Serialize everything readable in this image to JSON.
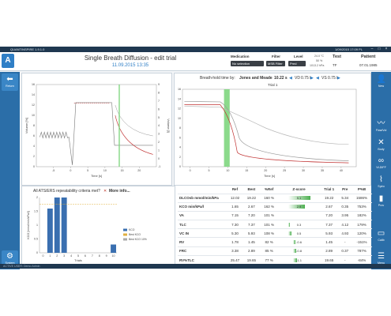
{
  "titlebar": {
    "app_title": "QUANTINSPIRE 1.9.1.0",
    "clock": "1/09/2015 17:09 PL"
  },
  "header": {
    "title": "Single Breath Diffusion - edit trial",
    "date": "11.09.2015 13:35",
    "medication_label": "Medication",
    "medication_value": "No selection",
    "filter_label": "Filter",
    "filter_value": "MSB Filter",
    "level_label": "Level",
    "level_value": "Pred",
    "env_temp": "24.0 °C",
    "env_humidity": "50 %",
    "env_pressure": "1013.2 hPa",
    "test_label": "Test",
    "test_value": "TF",
    "patient_label": "Patient",
    "patient_value": "07.01.1985"
  },
  "left_nav": {
    "return_label": "Return",
    "system_label": "System"
  },
  "right_nav": [
    {
      "label": "New",
      "icon": "person-icon"
    },
    {
      "label": "Flow/Vol",
      "icon": "flow-volume-icon"
    },
    {
      "label": "Body",
      "icon": "body-box-icon"
    },
    {
      "label": "Vt-DIFF",
      "icon": "diffusion-icon"
    },
    {
      "label": "Spiro",
      "icon": "spiro-icon"
    },
    {
      "label": "Prov",
      "icon": "provocation-icon"
    },
    {
      "label": "Calib",
      "icon": "calibration-icon"
    },
    {
      "label": "Menu",
      "icon": "menu-icon"
    }
  ],
  "breath_panel": {
    "label": "Breath-hold time by:",
    "method": "Jones and Meade",
    "time": "10.22 s",
    "vd_label": "VD",
    "vd_value": "0.75 l",
    "vs_label": "VS",
    "vs_value": "0.75 l",
    "trial_label": "Trial 1"
  },
  "repeatability": {
    "text": "All ATS/ERS repeatability criteria met?",
    "more_info": "More info..."
  },
  "chart_data": [
    {
      "type": "line",
      "name": "trial overview",
      "xlabel": "Time [s]",
      "ylabel_left": "Volume [%]",
      "ylabel_right": "Volume [l]",
      "xlim": [
        -10,
        25
      ],
      "ylim_left": [
        0,
        16
      ],
      "ylim_right": [
        -1,
        9
      ],
      "x_ticks": [
        -5,
        0,
        5,
        10,
        15,
        20
      ],
      "y_ticks_left": [
        0,
        2,
        4,
        6,
        8,
        10,
        12,
        14,
        16
      ],
      "y_ticks_right": [
        -1,
        0,
        1,
        2,
        3,
        4,
        5,
        6,
        7,
        8,
        9
      ]
    },
    {
      "type": "line",
      "name": "gas concentrations",
      "xlabel": "Time [s]",
      "xlim": [
        -2,
        44
      ],
      "ylim_left": [
        0,
        16
      ],
      "x_ticks": [
        0,
        5,
        10,
        15,
        20,
        25,
        30,
        35,
        40
      ],
      "y_ticks_left": [
        0,
        2,
        4,
        6,
        8,
        10,
        12,
        14,
        16
      ]
    },
    {
      "type": "bar",
      "name": "KCO",
      "xlabel": "Trials",
      "ylabel": "KCO [mmol/min/kPa/l]",
      "categories": [
        "0",
        "1",
        "2",
        "3",
        "4",
        "5",
        "6",
        "7",
        "8",
        "9",
        "10"
      ],
      "values": [
        0,
        1.6,
        2.0,
        2.0,
        0,
        0,
        0,
        0,
        0,
        0,
        0.3
      ],
      "ylim": [
        0,
        2
      ],
      "legend": [
        "KCO",
        "Best KCO",
        "Best KCO 10%"
      ],
      "reference_line": 1.75
    }
  ],
  "results": {
    "columns": [
      "",
      "Ref",
      "Best",
      "%Ref",
      "Z-score",
      "Trial 1",
      "Pre",
      "P%B"
    ],
    "rows": [
      {
        "param": "DLCOsb  mmol/min/kPa",
        "ref": "12.02",
        "best": "19.22",
        "pref": "160 %",
        "z": "5.1",
        "z_frac": 1.0,
        "trial": "19.22",
        "pre": "5.34",
        "pb": "1586%"
      },
      {
        "param": "KCO    min/kPa/l",
        "ref": "1.65",
        "best": "2.67",
        "pref": "162 %",
        "z": "2.9",
        "z_frac": 0.75,
        "trial": "2.67",
        "pre": "0.35",
        "pb": "753%"
      },
      {
        "param": "VA",
        "ref": "7.15",
        "best": "7.20",
        "pref": "101 %",
        "z": "",
        "z_frac": 0,
        "trial": "7.20",
        "pre": "3.95",
        "pb": "182%"
      },
      {
        "param": "TLC",
        "ref": "7.30",
        "best": "7.37",
        "pref": "101 %",
        "z": "0.3",
        "z_frac": 0.1,
        "trial": "7.37",
        "pre": "4.12",
        "pb": "179%"
      },
      {
        "param": "VC IN",
        "ref": "5.30",
        "best": "5.93",
        "pref": "108 %",
        "z": "0.5",
        "z_frac": 0.15,
        "trial": "5.93",
        "pre": "4.93",
        "pb": "120%"
      },
      {
        "param": "RV",
        "ref": "1.78",
        "best": "1.45",
        "pref": "82 %",
        "z": "-0.6",
        "z_frac": 0.12,
        "trial": "1.45",
        "pre": "-",
        "pb": "-151%"
      },
      {
        "param": "FRC",
        "ref": "3.38",
        "best": "2.89",
        "pref": "85 %",
        "z": "-0.8",
        "z_frac": 0.15,
        "trial": "2.89",
        "pre": "0.37",
        "pb": "787%"
      },
      {
        "param": "RV%TLC",
        "ref": "25.47",
        "best": "19.65",
        "pref": "77 %",
        "z": "-1.1",
        "z_frac": 0.2,
        "trial": "19.65",
        "pre": "-",
        "pb": "-84%"
      }
    ],
    "units": [
      "",
      "",
      "[ l ]",
      "[ l ]",
      "[ l ]",
      "[ l ]",
      "[ l ]",
      "[ % ]"
    ]
  },
  "footer": {
    "text": "ACTIVE USER: Demo Admin"
  },
  "colors": {
    "accent": "#2f7fc6",
    "nav": "#2b6ea8",
    "green": "#4caf50",
    "highlight": "#7ed67e"
  }
}
